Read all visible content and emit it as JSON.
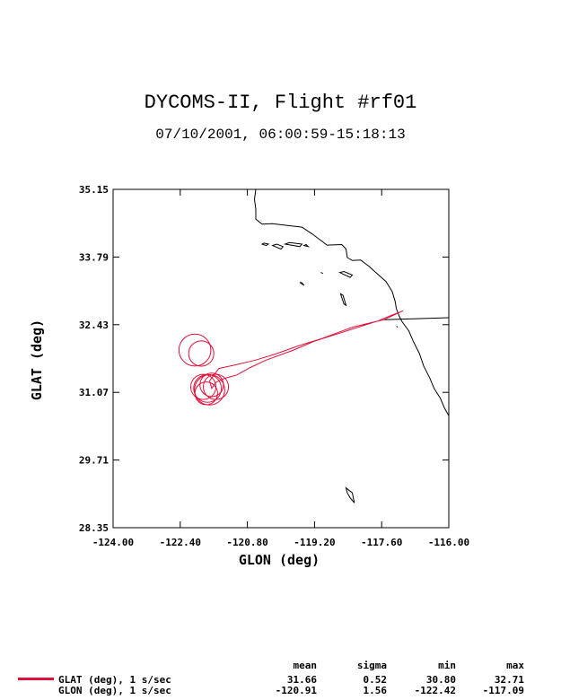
{
  "title": "DYCOMS-II, Flight #rf01",
  "subtitle": "07/10/2001, 06:00:59-15:18:13",
  "colors": {
    "series": "#e0103a",
    "axes": "#000000",
    "coast": "#000000"
  },
  "stats": {
    "headers": [
      "mean",
      "sigma",
      "min",
      "max"
    ],
    "rows": [
      {
        "label": "GLAT (deg), 1 s/sec",
        "values": [
          "31.66",
          "0.52",
          "30.80",
          "32.71"
        ]
      },
      {
        "label": "GLON (deg), 1 s/sec",
        "values": [
          "-120.91",
          "1.56",
          "-122.42",
          "-117.09"
        ]
      }
    ]
  },
  "chart_data": {
    "type": "line",
    "title": "DYCOMS-II, Flight #rf01",
    "subtitle": "07/10/2001, 06:00:59-15:18:13",
    "xlabel": "GLON (deg)",
    "ylabel": "GLAT (deg)",
    "xlim": [
      -124.0,
      -116.0
    ],
    "ylim": [
      28.35,
      35.15
    ],
    "xticks": [
      "-124.00",
      "-122.40",
      "-120.80",
      "-119.20",
      "-117.60",
      "-116.00"
    ],
    "yticks": [
      "28.35",
      "29.71",
      "31.07",
      "32.43",
      "33.79",
      "35.15"
    ],
    "grid": false,
    "legend": "bottom-left",
    "series": [
      {
        "name": "GLAT (deg), 1 s/sec",
        "color": "#e0103a",
        "track": [
          [
            -117.09,
            32.71
          ],
          [
            -117.55,
            32.53
          ],
          [
            -117.75,
            32.49
          ],
          [
            -118.6,
            32.26
          ],
          [
            -119.2,
            32.1
          ],
          [
            -119.7,
            31.92
          ],
          [
            -120.35,
            31.72
          ],
          [
            -120.75,
            31.56
          ],
          [
            -121.05,
            31.42
          ],
          [
            -121.35,
            31.35
          ],
          [
            -121.55,
            31.27
          ],
          [
            -121.65,
            31.15
          ],
          [
            -121.7,
            31.3
          ],
          [
            -121.48,
            31.55
          ],
          [
            -121.1,
            31.62
          ],
          [
            -120.6,
            31.72
          ],
          [
            -120.1,
            31.85
          ],
          [
            -119.6,
            32.0
          ],
          [
            -119.0,
            32.16
          ],
          [
            -118.3,
            32.38
          ],
          [
            -117.7,
            32.5
          ],
          [
            -117.37,
            32.62
          ],
          [
            -117.2,
            32.67
          ],
          [
            -117.09,
            32.71
          ]
        ],
        "loops": [
          {
            "center": [
              -122.05,
              31.92
            ],
            "radius_deg": 0.38
          },
          {
            "center": [
              -121.9,
              31.85
            ],
            "radius_deg": 0.3
          },
          {
            "center": [
              -121.85,
              31.18
            ],
            "radius_deg": 0.3
          },
          {
            "center": [
              -121.75,
              31.15
            ],
            "radius_deg": 0.33
          },
          {
            "center": [
              -121.7,
              31.12
            ],
            "radius_deg": 0.36
          },
          {
            "center": [
              -121.65,
              31.22
            ],
            "radius_deg": 0.28
          },
          {
            "center": [
              -121.55,
              31.18
            ],
            "radius_deg": 0.3
          },
          {
            "center": [
              -121.78,
              31.05
            ],
            "radius_deg": 0.27
          }
        ]
      },
      {
        "name": "GLON (deg), 1 s/sec",
        "color": "#e0103a"
      }
    ],
    "coastline": [
      [
        -120.6,
        35.15
      ],
      [
        -120.63,
        34.95
      ],
      [
        -120.6,
        34.75
      ],
      [
        -120.6,
        34.55
      ],
      [
        -120.45,
        34.45
      ],
      [
        -120.2,
        34.46
      ],
      [
        -119.8,
        34.42
      ],
      [
        -119.5,
        34.39
      ],
      [
        -119.25,
        34.25
      ],
      [
        -118.9,
        34.03
      ],
      [
        -118.55,
        34.04
      ],
      [
        -118.45,
        33.95
      ],
      [
        -118.42,
        33.78
      ],
      [
        -118.3,
        33.72
      ],
      [
        -118.1,
        33.73
      ],
      [
        -117.9,
        33.6
      ],
      [
        -117.7,
        33.45
      ],
      [
        -117.5,
        33.3
      ],
      [
        -117.35,
        33.1
      ],
      [
        -117.28,
        32.9
      ],
      [
        -117.25,
        32.75
      ],
      [
        -117.18,
        32.6
      ],
      [
        -117.12,
        32.5
      ],
      [
        -116.95,
        32.3
      ],
      [
        -116.85,
        32.1
      ],
      [
        -116.7,
        31.85
      ],
      [
        -116.6,
        31.6
      ],
      [
        -116.45,
        31.35
      ],
      [
        -116.35,
        31.15
      ],
      [
        -116.2,
        30.95
      ],
      [
        -116.1,
        30.75
      ],
      [
        -116.0,
        30.6
      ]
    ],
    "islands": [
      [
        [
          -120.45,
          34.05
        ],
        [
          -120.35,
          34.02
        ],
        [
          -120.3,
          34.05
        ],
        [
          -120.4,
          34.07
        ]
      ],
      [
        [
          -120.2,
          34.02
        ],
        [
          -120.0,
          33.95
        ],
        [
          -119.95,
          34.0
        ],
        [
          -120.1,
          34.05
        ]
      ],
      [
        [
          -119.9,
          34.05
        ],
        [
          -119.55,
          34.0
        ],
        [
          -119.5,
          34.05
        ],
        [
          -119.8,
          34.08
        ]
      ],
      [
        [
          -119.45,
          34.02
        ],
        [
          -119.35,
          34.0
        ],
        [
          -119.4,
          34.04
        ]
      ],
      [
        [
          -118.6,
          33.48
        ],
        [
          -118.35,
          33.38
        ],
        [
          -118.3,
          33.43
        ],
        [
          -118.5,
          33.5
        ]
      ],
      [
        [
          -118.58,
          33.05
        ],
        [
          -118.5,
          32.85
        ],
        [
          -118.45,
          32.82
        ],
        [
          -118.52,
          33.02
        ]
      ],
      [
        [
          -119.55,
          33.28
        ],
        [
          -119.45,
          33.22
        ],
        [
          -119.5,
          33.27
        ]
      ],
      [
        [
          -119.05,
          33.48
        ],
        [
          -119.0,
          33.46
        ]
      ],
      [
        [
          -118.45,
          29.15
        ],
        [
          -118.3,
          29.05
        ],
        [
          -118.25,
          28.85
        ],
        [
          -118.35,
          28.95
        ],
        [
          -118.42,
          29.05
        ]
      ],
      [
        [
          -117.25,
          32.4
        ],
        [
          -117.22,
          32.38
        ]
      ]
    ]
  }
}
